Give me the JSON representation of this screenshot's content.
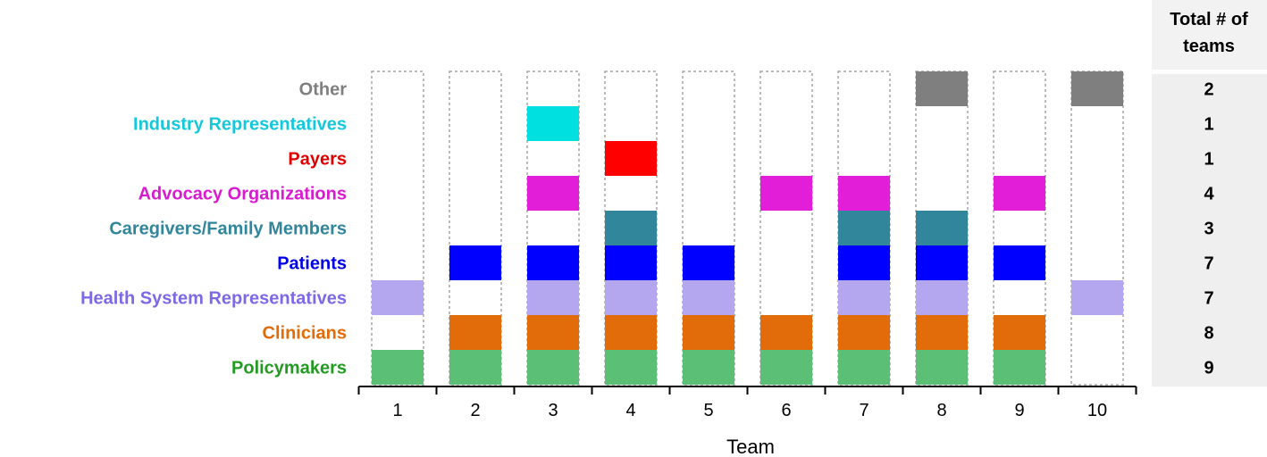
{
  "chart_data": {
    "type": "table",
    "xlabel": "Team",
    "teams": [
      "1",
      "2",
      "3",
      "4",
      "5",
      "6",
      "7",
      "8",
      "9",
      "10"
    ],
    "totals_header": [
      "Total # of",
      "teams"
    ],
    "categories": [
      {
        "name": "Other",
        "color": "#7f7f7f",
        "teams": [
          8,
          10
        ],
        "total": "2"
      },
      {
        "name": "Industry Representatives",
        "color": "#00e0e0",
        "teams": [
          3
        ],
        "total": "1"
      },
      {
        "name": "Payers",
        "color": "#ff0000",
        "teams": [
          4
        ],
        "total": "1"
      },
      {
        "name": "Advocacy Organizations",
        "color": "#e21ed8",
        "teams": [
          3,
          6,
          7,
          9
        ],
        "total": "4"
      },
      {
        "name": "Caregivers/Family Members",
        "color": "#31869b",
        "teams": [
          4,
          7,
          8
        ],
        "total": "3"
      },
      {
        "name": "Patients",
        "color": "#0000ff",
        "teams": [
          2,
          3,
          4,
          5,
          7,
          8,
          9
        ],
        "total": "7"
      },
      {
        "name": "Health System Representatives",
        "color": "#b4a7f0",
        "teams": [
          1,
          3,
          4,
          5,
          7,
          8,
          10
        ],
        "total": "7"
      },
      {
        "name": "Clinicians",
        "color": "#e36c0a",
        "teams": [
          2,
          3,
          4,
          5,
          6,
          7,
          8,
          9
        ],
        "total": "8"
      },
      {
        "name": "Policymakers",
        "color": "#5cbf76",
        "teams": [
          1,
          2,
          3,
          4,
          5,
          6,
          7,
          8,
          9
        ],
        "total": "9"
      }
    ],
    "label_colors": {
      "Other": "#7f7f7f",
      "Industry Representatives": "#14c8dc",
      "Payers": "#e00000",
      "Advocacy Organizations": "#d81ad0",
      "Caregivers/Family Members": "#31869b",
      "Patients": "#0000e6",
      "Health System Representatives": "#7d68e6",
      "Clinicians": "#e36c0a",
      "Policymakers": "#239b23"
    },
    "grid": false,
    "legend": "none"
  }
}
